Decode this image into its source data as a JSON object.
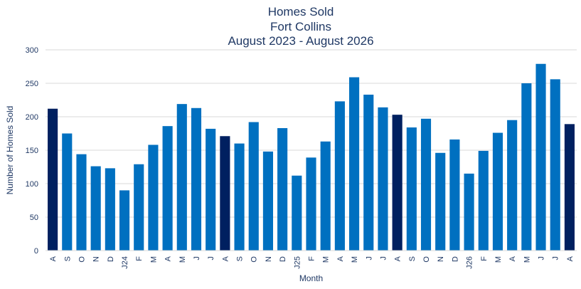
{
  "chart_data": {
    "type": "bar",
    "title": [
      "Homes Sold",
      "Fort Collins",
      "August 2023 - August 2026"
    ],
    "xlabel": "Month",
    "ylabel": "Number of Homes Sold",
    "ylim": [
      0,
      300
    ],
    "yticks": [
      0,
      50,
      100,
      150,
      200,
      250,
      300
    ],
    "grid": true,
    "legend": "none",
    "categories": [
      "A",
      "S",
      "O",
      "N",
      "D",
      "J24",
      "F",
      "M",
      "A",
      "M",
      "J",
      "J",
      "A",
      "S",
      "O",
      "N",
      "D",
      "J25",
      "F",
      "M",
      "A",
      "M",
      "J",
      "J",
      "A",
      "S",
      "O",
      "N",
      "D",
      "J26",
      "F",
      "M",
      "A",
      "M",
      "J",
      "J",
      "A"
    ],
    "values": [
      212,
      175,
      144,
      126,
      123,
      90,
      129,
      158,
      186,
      219,
      213,
      182,
      171,
      160,
      192,
      148,
      183,
      112,
      139,
      163,
      223,
      259,
      233,
      214,
      203,
      184,
      197,
      146,
      166,
      115,
      149,
      176,
      195,
      250,
      279,
      256,
      189
    ],
    "highlight_indices": [
      0,
      12,
      24,
      36
    ],
    "colors": {
      "bar": "#0070c0",
      "highlight": "#002060",
      "title": "#1f3864",
      "axis_text": "#1f3864",
      "grid": "#d9d9d9"
    }
  }
}
